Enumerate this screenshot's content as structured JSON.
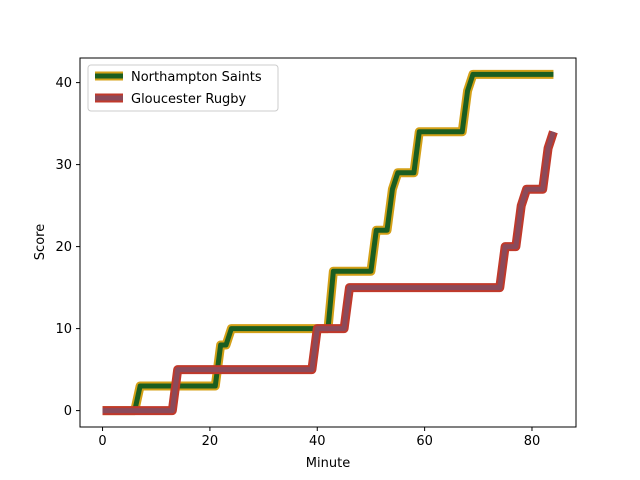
{
  "chart_data": {
    "type": "line",
    "title": "",
    "xlabel": "Minute",
    "ylabel": "Score",
    "xlim": [
      -4.2,
      88.2
    ],
    "ylim": [
      -2.0,
      43.0
    ],
    "x_ticks": [
      0,
      20,
      40,
      60,
      80
    ],
    "y_ticks": [
      0,
      10,
      20,
      30,
      40
    ],
    "grid": false,
    "legend_position": "top-left",
    "series": [
      {
        "name": "Northampton Saints",
        "line_color": "#1b5e20",
        "outline_color": "#d4a017",
        "points": [
          [
            0,
            0
          ],
          [
            6,
            0
          ],
          [
            7,
            3
          ],
          [
            21,
            3
          ],
          [
            22,
            8
          ],
          [
            23,
            8
          ],
          [
            24,
            10
          ],
          [
            42,
            10
          ],
          [
            43,
            17
          ],
          [
            50,
            17
          ],
          [
            51,
            22
          ],
          [
            53,
            22
          ],
          [
            54,
            27
          ],
          [
            55,
            29
          ],
          [
            58,
            29
          ],
          [
            59,
            34
          ],
          [
            67,
            34
          ],
          [
            68,
            39
          ],
          [
            69,
            41
          ],
          [
            84,
            41
          ]
        ]
      },
      {
        "name": "Gloucester Rugby",
        "line_color": "#8b4a5a",
        "outline_color": "#c0392b",
        "points": [
          [
            0,
            0
          ],
          [
            13,
            0
          ],
          [
            14,
            5
          ],
          [
            39,
            5
          ],
          [
            40,
            10
          ],
          [
            45,
            10
          ],
          [
            46,
            15
          ],
          [
            74,
            15
          ],
          [
            75,
            20
          ],
          [
            76,
            20
          ],
          [
            77,
            20
          ],
          [
            78,
            25
          ],
          [
            79,
            27
          ],
          [
            82,
            27
          ],
          [
            83,
            32
          ],
          [
            84,
            34
          ]
        ]
      }
    ]
  }
}
